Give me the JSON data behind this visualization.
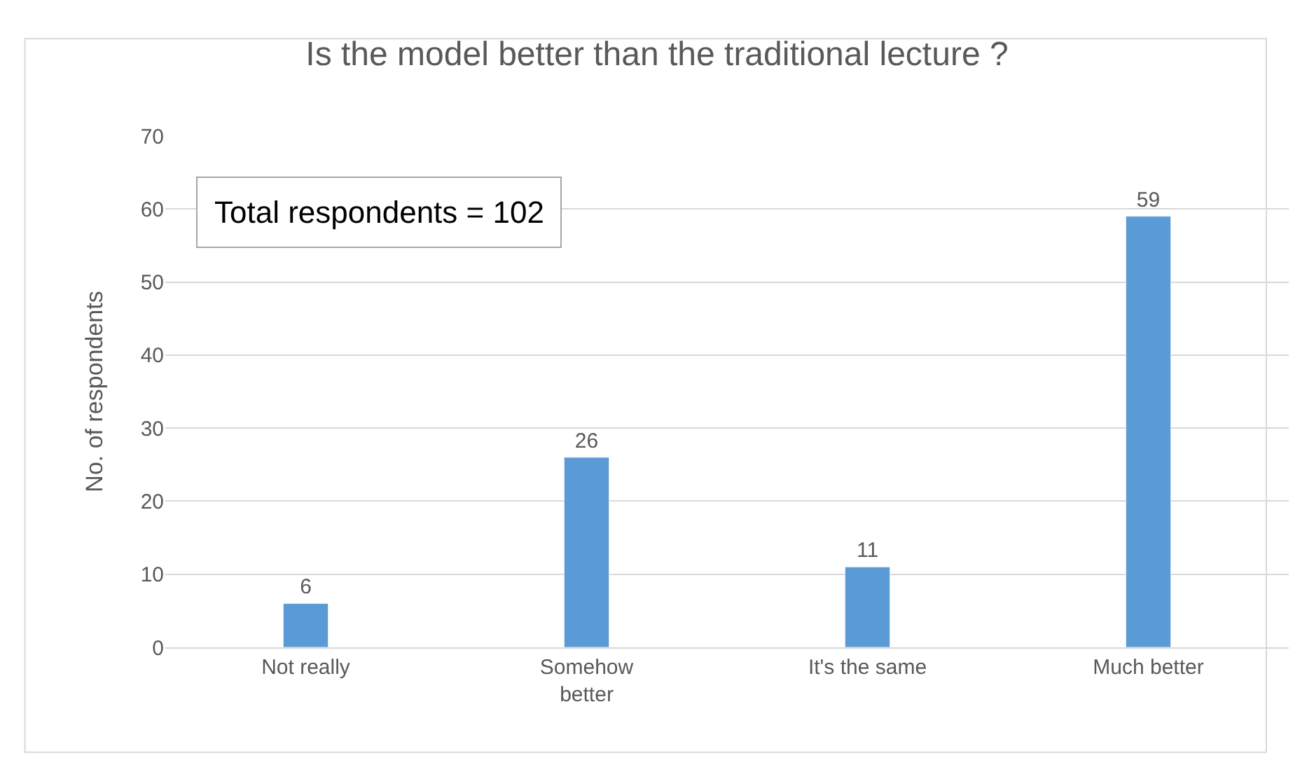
{
  "chart_data": {
    "type": "bar",
    "title": "Is the model better than the traditional lecture ?",
    "ylabel": "No. of respondents",
    "categories": [
      "Not really",
      "Somehow better",
      "It's the same",
      "Much better"
    ],
    "values": [
      6,
      26,
      11,
      59
    ],
    "color": "#5b9bd5",
    "ylim": [
      0,
      70
    ],
    "yticks": [
      0,
      10,
      20,
      30,
      40,
      50,
      60,
      70
    ],
    "grid": "y",
    "data_labels": true,
    "annotations": [
      "Total respondents = 102"
    ]
  }
}
